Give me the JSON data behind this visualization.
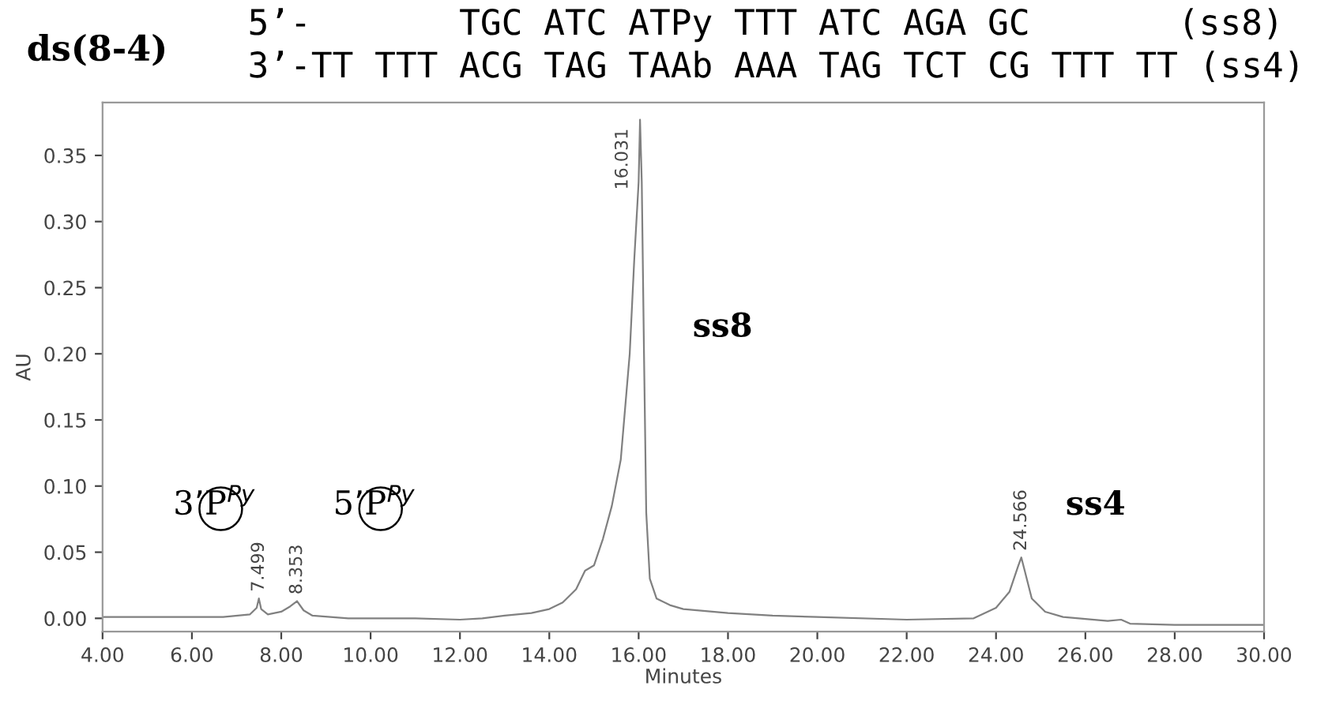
{
  "chart_data": {
    "type": "line",
    "title": "ds(8-4)",
    "xlabel": "Minutes",
    "ylabel": "AU",
    "x": [
      4,
      6,
      6.7,
      7.3,
      7.45,
      7.499,
      7.55,
      7.7,
      8.0,
      8.2,
      8.353,
      8.5,
      8.7,
      9.5,
      11,
      12,
      12.5,
      13,
      13.6,
      14,
      14.3,
      14.6,
      14.8,
      15.0,
      15.2,
      15.4,
      15.6,
      15.8,
      15.9,
      16.0,
      16.031,
      16.07,
      16.12,
      16.17,
      16.25,
      16.4,
      16.7,
      17,
      18,
      19,
      20,
      22,
      23.5,
      24,
      24.3,
      24.5,
      24.566,
      24.65,
      24.8,
      25.1,
      25.5,
      26.5,
      26.8,
      27,
      28,
      30
    ],
    "series": [
      {
        "color": "#808080",
        "values": [
          0.001,
          0.001,
          0.001,
          0.003,
          0.008,
          0.015,
          0.007,
          0.003,
          0.005,
          0.009,
          0.013,
          0.006,
          0.002,
          0.0,
          0.0,
          -0.001,
          0.0,
          0.002,
          0.004,
          0.007,
          0.012,
          0.022,
          0.036,
          0.04,
          0.06,
          0.085,
          0.12,
          0.2,
          0.27,
          0.33,
          0.377,
          0.33,
          0.2,
          0.08,
          0.03,
          0.015,
          0.01,
          0.007,
          0.004,
          0.002,
          0.001,
          -0.001,
          0.0,
          0.008,
          0.02,
          0.04,
          0.046,
          0.035,
          0.015,
          0.005,
          0.001,
          -0.002,
          -0.001,
          -0.004,
          -0.005,
          -0.005
        ]
      }
    ],
    "xlim": [
      4,
      30
    ],
    "xticks": [
      {
        "value": 4,
        "label": "4.00"
      },
      {
        "value": 6,
        "label": "6.00"
      },
      {
        "value": 8,
        "label": "8.00"
      },
      {
        "value": 10,
        "label": "10.00"
      },
      {
        "value": 12,
        "label": "12.00"
      },
      {
        "value": 14,
        "label": "14.00"
      },
      {
        "value": 16,
        "label": "16.00"
      },
      {
        "value": 18,
        "label": "18.00"
      },
      {
        "value": 20,
        "label": "20.00"
      },
      {
        "value": 22,
        "label": "22.00"
      },
      {
        "value": 24,
        "label": "24.00"
      },
      {
        "value": 26,
        "label": "26.00"
      },
      {
        "value": 28,
        "label": "28.00"
      },
      {
        "value": 30,
        "label": "30.00"
      }
    ],
    "ylim": [
      -0.01,
      0.39
    ],
    "yticks": [
      {
        "value": 0,
        "label": "0.00"
      },
      {
        "value": 0.05,
        "label": "0.05"
      },
      {
        "value": 0.1,
        "label": "0.10"
      },
      {
        "value": 0.15,
        "label": "0.15"
      },
      {
        "value": 0.2,
        "label": "0.20"
      },
      {
        "value": 0.25,
        "label": "0.25"
      },
      {
        "value": 0.3,
        "label": "0.30"
      },
      {
        "value": 0.35,
        "label": "0.35"
      }
    ],
    "grid": false,
    "line_style": "solid",
    "marker": "none",
    "annotations": [
      {
        "text": "7.499",
        "x": 7.499,
        "y": 0.015
      },
      {
        "text": "8.353",
        "x": 8.353,
        "y": 0.013
      },
      {
        "text": "16.031",
        "x": 16.031,
        "y": 0.377
      },
      {
        "text": "24.566",
        "x": 24.566,
        "y": 0.046
      },
      "ss8",
      "ss4",
      "3’P$^{Py}$",
      "5’P$^{Py}$",
      "5’-       TGC ATC ATPy TTT ATC AGA GC       (ss8)",
      "3’-TT TTT ACG TAG TAAb AAA TAG TCT CG TTT TT (ss4)"
    ]
  }
}
